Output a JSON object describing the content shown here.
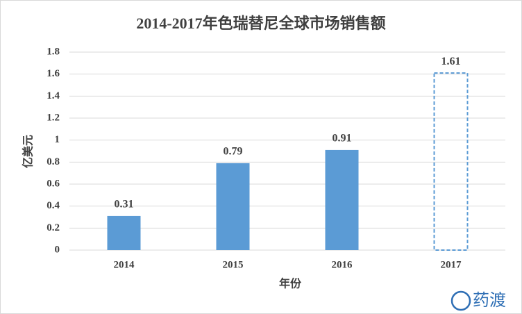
{
  "chart_data": {
    "type": "bar",
    "title": "2014-2017年色瑞替尼全球市场销售额",
    "x_label": "年份",
    "y_label": "亿美元",
    "categories": [
      "2014",
      "2015",
      "2016",
      "2017"
    ],
    "values": [
      0.31,
      0.79,
      0.91,
      1.61
    ],
    "color": "#5b9bd5",
    "bar_styles": [
      "solid",
      "solid",
      "solid",
      "dashed"
    ],
    "ylim": [
      0,
      1.8
    ],
    "yticks": [
      0,
      0.2,
      0.4,
      0.6,
      0.8,
      1,
      1.2,
      1.4,
      1.6,
      1.8
    ],
    "grid": true,
    "watermark": "药渡"
  }
}
